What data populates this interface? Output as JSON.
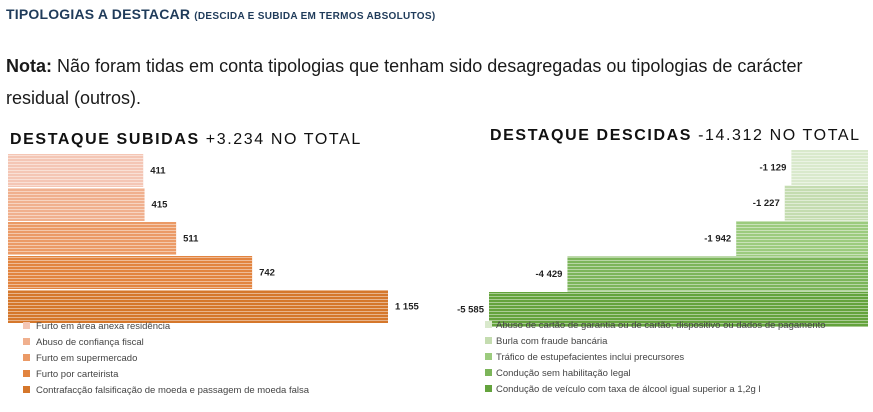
{
  "header": {
    "title": "TIPOLOGIAS A DESTACAR",
    "subtitle": "(DESCIDA E SUBIDA EM TERMOS ABSOLUTOS)"
  },
  "note": {
    "label": "Nota:",
    "text": " Não foram tidas em conta tipologias que tenham sido desagregadas ou tipologias de carácter residual (outros)."
  },
  "chart_data": [
    {
      "type": "bar",
      "title_bold": "DESTAQUE SUBIDAS",
      "title_rest": " +3.234 NO TOTAL",
      "categories": [
        "Furto em área anexa residência",
        "Abuso de confiança fiscal",
        "Furto em supermercado",
        "Furto por carteirista",
        "Contrafacção falsificação de moeda e passagem de moeda falsa"
      ],
      "values": [
        411,
        415,
        511,
        742,
        1155
      ],
      "value_labels": [
        "411",
        "415",
        "511",
        "742",
        "1 155"
      ],
      "colors": [
        "#f4c6b5",
        "#f0b08e",
        "#eb9a66",
        "#e2843f",
        "#d5772b"
      ],
      "legend": "bottom"
    },
    {
      "type": "bar",
      "title_bold": "DESTAQUE DESCIDAS",
      "title_rest": " -14.312 NO TOTAL",
      "categories": [
        "Abuso de cartão de garantia ou de cartão, dispositivo ou dados de pagamento",
        "Burla com fraude bancária",
        "Tráfico de estupefacientes inclui precursores",
        "Condução sem habilitação legal",
        "Condução de veículo com taxa de álcool igual superior a 1,2g l"
      ],
      "values": [
        -1129,
        -1227,
        -1942,
        -4429,
        -5585
      ],
      "value_labels": [
        "-1 129",
        "-1 227",
        "-1 942",
        "-4 429",
        "-5 585"
      ],
      "colors": [
        "#d9e9cc",
        "#c4dcb0",
        "#9ccb7e",
        "#7cb55a",
        "#64a33d"
      ],
      "legend": "bottom"
    }
  ]
}
